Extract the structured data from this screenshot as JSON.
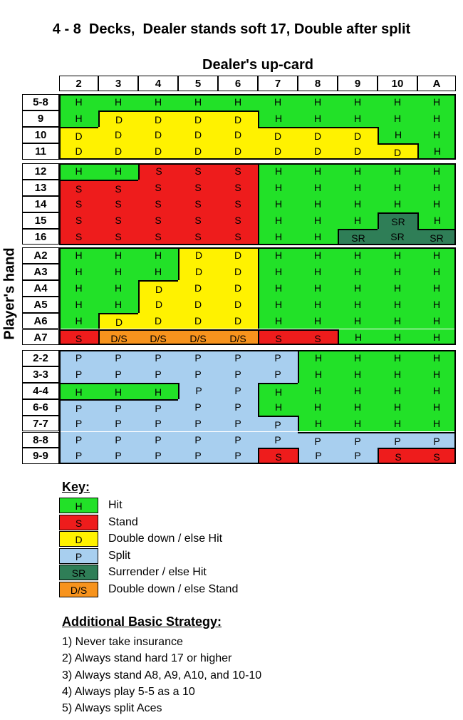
{
  "title": "4 - 8  Decks,  Dealer stands soft 17, Double after split",
  "dealer_label": "Dealer's up-card",
  "player_label": "Player's hand",
  "dealer_cards": [
    "2",
    "3",
    "4",
    "5",
    "6",
    "7",
    "8",
    "9",
    "10",
    "A"
  ],
  "action_colors": {
    "H": "#22e128",
    "S": "#ee1c1c",
    "D": "#fff200",
    "P": "#a8cfef",
    "SR": "#2f7e57",
    "D/S": "#f7931d"
  },
  "blocks": [
    {
      "name": "hard-totals-low",
      "rows": [
        {
          "hand": "5-8",
          "actions": [
            "H",
            "H",
            "H",
            "H",
            "H",
            "H",
            "H",
            "H",
            "H",
            "H"
          ]
        },
        {
          "hand": "9",
          "actions": [
            "H",
            "D",
            "D",
            "D",
            "D",
            "H",
            "H",
            "H",
            "H",
            "H"
          ]
        },
        {
          "hand": "10",
          "actions": [
            "D",
            "D",
            "D",
            "D",
            "D",
            "D",
            "D",
            "D",
            "H",
            "H"
          ]
        },
        {
          "hand": "11",
          "actions": [
            "D",
            "D",
            "D",
            "D",
            "D",
            "D",
            "D",
            "D",
            "D",
            "H"
          ]
        }
      ]
    },
    {
      "name": "hard-totals-high",
      "rows": [
        {
          "hand": "12",
          "actions": [
            "H",
            "H",
            "S",
            "S",
            "S",
            "H",
            "H",
            "H",
            "H",
            "H"
          ]
        },
        {
          "hand": "13",
          "actions": [
            "S",
            "S",
            "S",
            "S",
            "S",
            "H",
            "H",
            "H",
            "H",
            "H"
          ]
        },
        {
          "hand": "14",
          "actions": [
            "S",
            "S",
            "S",
            "S",
            "S",
            "H",
            "H",
            "H",
            "H",
            "H"
          ]
        },
        {
          "hand": "15",
          "actions": [
            "S",
            "S",
            "S",
            "S",
            "S",
            "H",
            "H",
            "H",
            "SR",
            "H"
          ]
        },
        {
          "hand": "16",
          "actions": [
            "S",
            "S",
            "S",
            "S",
            "S",
            "H",
            "H",
            "SR",
            "SR",
            "SR"
          ]
        }
      ]
    },
    {
      "name": "soft-totals",
      "rows": [
        {
          "hand": "A2",
          "actions": [
            "H",
            "H",
            "H",
            "D",
            "D",
            "H",
            "H",
            "H",
            "H",
            "H"
          ]
        },
        {
          "hand": "A3",
          "actions": [
            "H",
            "H",
            "H",
            "D",
            "D",
            "H",
            "H",
            "H",
            "H",
            "H"
          ]
        },
        {
          "hand": "A4",
          "actions": [
            "H",
            "H",
            "D",
            "D",
            "D",
            "H",
            "H",
            "H",
            "H",
            "H"
          ]
        },
        {
          "hand": "A5",
          "actions": [
            "H",
            "H",
            "D",
            "D",
            "D",
            "H",
            "H",
            "H",
            "H",
            "H"
          ]
        },
        {
          "hand": "A6",
          "actions": [
            "H",
            "D",
            "D",
            "D",
            "D",
            "H",
            "H",
            "H",
            "H",
            "H"
          ]
        },
        {
          "hand": "A7",
          "actions": [
            "S",
            "D/S",
            "D/S",
            "D/S",
            "D/S",
            "S",
            "S",
            "H",
            "H",
            "H"
          ]
        }
      ]
    },
    {
      "name": "pairs",
      "rows": [
        {
          "hand": "2-2",
          "actions": [
            "P",
            "P",
            "P",
            "P",
            "P",
            "P",
            "H",
            "H",
            "H",
            "H"
          ]
        },
        {
          "hand": "3-3",
          "actions": [
            "P",
            "P",
            "P",
            "P",
            "P",
            "P",
            "H",
            "H",
            "H",
            "H"
          ]
        },
        {
          "hand": "4-4",
          "actions": [
            "H",
            "H",
            "H",
            "P",
            "P",
            "H",
            "H",
            "H",
            "H",
            "H"
          ]
        },
        {
          "hand": "6-6",
          "actions": [
            "P",
            "P",
            "P",
            "P",
            "P",
            "H",
            "H",
            "H",
            "H",
            "H"
          ]
        },
        {
          "hand": "7-7",
          "actions": [
            "P",
            "P",
            "P",
            "P",
            "P",
            "P",
            "H",
            "H",
            "H",
            "H"
          ]
        },
        {
          "hand": "8-8",
          "actions": [
            "P",
            "P",
            "P",
            "P",
            "P",
            "P",
            "P",
            "P",
            "P",
            "P"
          ]
        },
        {
          "hand": "9-9",
          "actions": [
            "P",
            "P",
            "P",
            "P",
            "P",
            "S",
            "P",
            "P",
            "S",
            "S"
          ]
        }
      ]
    }
  ],
  "key": {
    "title": "Key:",
    "items": [
      {
        "code": "H",
        "label": "Hit"
      },
      {
        "code": "S",
        "label": "Stand"
      },
      {
        "code": "D",
        "label": "Double down / else Hit"
      },
      {
        "code": "P",
        "label": "Split"
      },
      {
        "code": "SR",
        "label": "Surrender / else Hit"
      },
      {
        "code": "D/S",
        "label": "Double down / else Stand"
      }
    ]
  },
  "strategy": {
    "title": "Additional Basic Strategy:",
    "items": [
      "1) Never take insurance",
      "2) Always stand hard 17 or higher",
      "3) Always stand A8, A9, A10, and 10-10",
      "4) Always play 5-5 as a 10",
      "5) Always split Aces"
    ]
  }
}
